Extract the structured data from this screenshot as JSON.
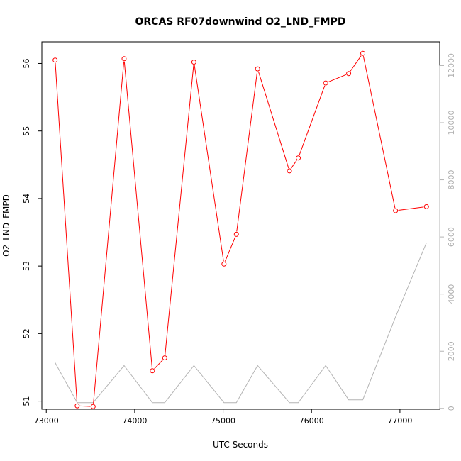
{
  "chart_data": {
    "type": "line",
    "title": "ORCAS RF07downwind O2_LND_FMPD",
    "xlabel": "UTC Seconds",
    "ylabel": "O2_LND_FMPD",
    "xlim": [
      72950,
      77450
    ],
    "ylim": [
      50.88,
      56.32
    ],
    "y2lim": [
      -30,
      12830
    ],
    "x_ticks": [
      73000,
      74000,
      75000,
      76000,
      77000
    ],
    "y_ticks": [
      51,
      52,
      53,
      54,
      55,
      56
    ],
    "y2_ticks": [
      0,
      2000,
      4000,
      6000,
      8000,
      10000,
      12000
    ],
    "grid": false,
    "legend": "none",
    "series": [
      {
        "axis": "left",
        "color": "#ff0000",
        "marker": "open-circle",
        "x": [
          73100,
          73350,
          73530,
          73880,
          74200,
          74340,
          74670,
          75010,
          75150,
          75390,
          75750,
          75850,
          76160,
          76420,
          76580,
          76950,
          77300
        ],
        "values": [
          56.05,
          50.93,
          50.92,
          56.07,
          51.45,
          51.64,
          56.02,
          53.03,
          53.47,
          55.92,
          54.41,
          54.6,
          55.71,
          55.85,
          56.15,
          53.82,
          53.88
        ]
      },
      {
        "axis": "right",
        "color": "#b4b4b4",
        "marker": "none",
        "x": [
          73100,
          73350,
          73530,
          73880,
          74200,
          74340,
          74670,
          75010,
          75150,
          75390,
          75750,
          75850,
          76160,
          76420,
          76580,
          76950,
          77300
        ],
        "values": [
          1600,
          200,
          200,
          1500,
          200,
          200,
          1500,
          200,
          200,
          1500,
          200,
          200,
          1500,
          300,
          300,
          3200,
          5800
        ]
      }
    ]
  }
}
